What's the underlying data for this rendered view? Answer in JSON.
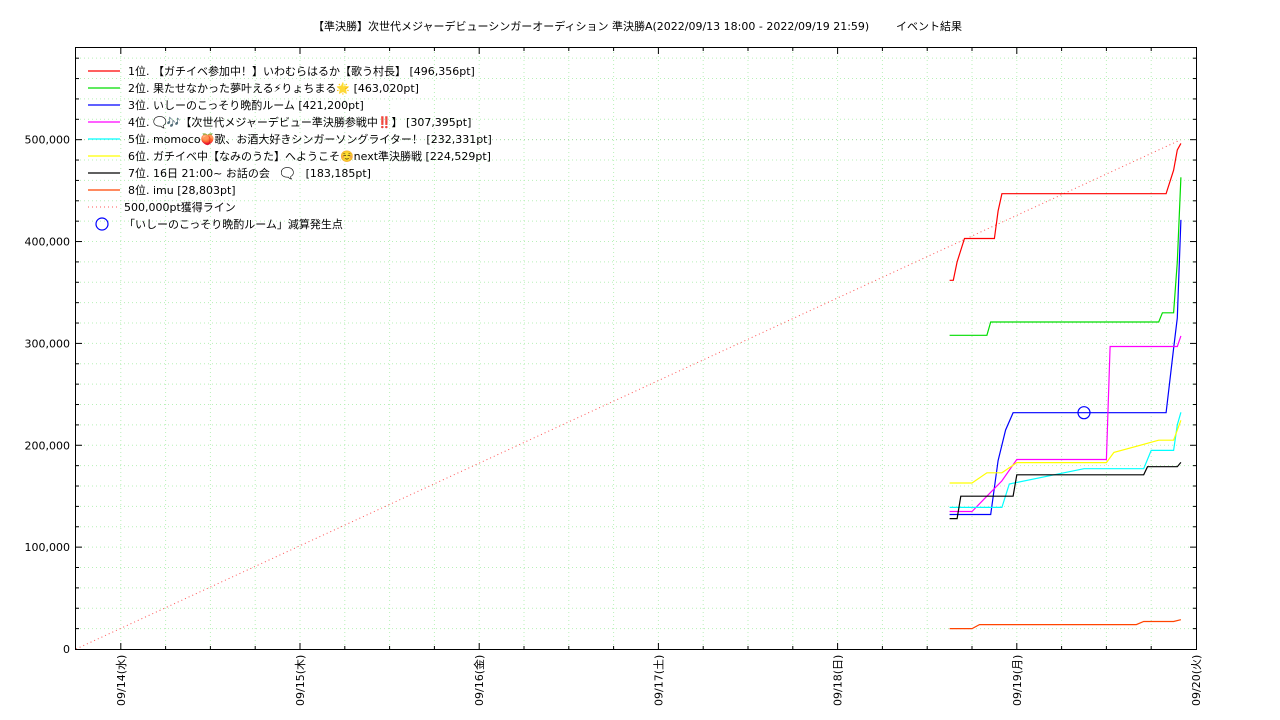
{
  "chart_data": {
    "type": "line",
    "title": "【準決勝】次世代メジャーデビューシンガーオーディション 準決勝A(2022/09/13 18:00 - 2022/09/19 21:59)",
    "subtitle": "イベント結果",
    "xlabel": "",
    "ylabel": "",
    "xlim": [
      "2022-09-13 18:00",
      "2022-09-20 00:00"
    ],
    "ylim": [
      0,
      590000
    ],
    "grid": true,
    "legend_position": "top-left",
    "x_tick_labels": [
      "09/14(水)",
      "09/15(木)",
      "09/16(金)",
      "09/17(土)",
      "09/18(日)",
      "09/19(月)",
      "09/20(火)"
    ],
    "x_tick_values": [
      "2022-09-14 00:00",
      "2022-09-15 00:00",
      "2022-09-16 00:00",
      "2022-09-17 00:00",
      "2022-09-18 00:00",
      "2022-09-19 00:00",
      "2022-09-20 00:00"
    ],
    "y_tick_labels": [
      "0",
      "100,000",
      "200,000",
      "300,000",
      "400,000",
      "500,000"
    ],
    "y_tick_values": [
      0,
      100000,
      200000,
      300000,
      400000,
      500000
    ],
    "series": [
      {
        "name": "1位. 【ガチイベ参加中！】いわむらはるか【歌う村長】 [496,356pt]",
        "color": "#ff0000",
        "x": [
          "2022-09-18 15:00",
          "2022-09-18 15:30",
          "2022-09-18 16:00",
          "2022-09-18 17:00",
          "2022-09-18 21:00",
          "2022-09-18 21:30",
          "2022-09-18 22:00",
          "2022-09-19 15:00",
          "2022-09-19 20:00",
          "2022-09-19 21:00",
          "2022-09-19 21:30",
          "2022-09-19 21:59"
        ],
        "y": [
          362000,
          362000,
          380000,
          403000,
          403000,
          430000,
          447000,
          447000,
          447000,
          470000,
          490000,
          496356
        ]
      },
      {
        "name": "2位. 果たせなかった夢叶える⚡りょちまる🌟 [463,020pt]",
        "color": "#00dd00",
        "x": [
          "2022-09-18 15:00",
          "2022-09-18 20:00",
          "2022-09-18 20:30",
          "2022-09-19 12:00",
          "2022-09-19 19:00",
          "2022-09-19 19:30",
          "2022-09-19 21:00",
          "2022-09-19 21:30",
          "2022-09-19 21:59"
        ],
        "y": [
          308000,
          308000,
          321000,
          321000,
          321000,
          330000,
          330000,
          380000,
          463020
        ]
      },
      {
        "name": "3位. いしーのこっそり晩酌ルーム [421,200pt]",
        "color": "#0000ff",
        "x": [
          "2022-09-18 15:00",
          "2022-09-18 20:30",
          "2022-09-18 21:30",
          "2022-09-18 22:30",
          "2022-09-18 23:30",
          "2022-09-19 15:00",
          "2022-09-19 20:00",
          "2022-09-19 21:00",
          "2022-09-19 21:30",
          "2022-09-19 21:59"
        ],
        "y": [
          132000,
          132000,
          185000,
          215000,
          232000,
          232000,
          232000,
          295000,
          325000,
          421200
        ]
      },
      {
        "name": "4位. 🗨️🎶【次世代メジャーデビュー準決勝参戦中‼️】 [307,395pt]",
        "color": "#ff00ff",
        "x": [
          "2022-09-18 15:00",
          "2022-09-18 18:00",
          "2022-09-18 20:00",
          "2022-09-18 22:00",
          "2022-09-19 00:00",
          "2022-09-19 10:00",
          "2022-09-19 12:00",
          "2022-09-19 12:30",
          "2022-09-19 21:30",
          "2022-09-19 21:59"
        ],
        "y": [
          135000,
          135000,
          150000,
          165000,
          186000,
          186000,
          186000,
          297000,
          297000,
          307395
        ]
      },
      {
        "name": "5位. momoco🍑歌、お酒大好きシンガーソングライター！ [232,331pt]",
        "color": "#00ffff",
        "x": [
          "2022-09-18 15:00",
          "2022-09-18 22:00",
          "2022-09-18 23:00",
          "2022-09-19 09:00",
          "2022-09-19 17:00",
          "2022-09-19 18:00",
          "2022-09-19 21:00",
          "2022-09-19 21:30",
          "2022-09-19 21:59"
        ],
        "y": [
          139000,
          139000,
          162000,
          177000,
          177000,
          195000,
          195000,
          220000,
          232331
        ]
      },
      {
        "name": "6位. ガチイベ中【なみのうた】へようこそ☺️next準決勝戦 [224,529pt]",
        "color": "#ffff00",
        "x": [
          "2022-09-18 15:00",
          "2022-09-18 18:00",
          "2022-09-18 20:00",
          "2022-09-18 22:00",
          "2022-09-19 00:00",
          "2022-09-19 12:00",
          "2022-09-19 13:00",
          "2022-09-19 19:00",
          "2022-09-19 21:00",
          "2022-09-19 21:59"
        ],
        "y": [
          163000,
          163000,
          173000,
          173000,
          183000,
          183000,
          193000,
          205000,
          205000,
          224529
        ]
      },
      {
        "name": "7位. 16日 21:00~ お話の会　🗨️　[183,185pt]",
        "color": "#000000",
        "x": [
          "2022-09-18 15:00",
          "2022-09-18 16:00",
          "2022-09-18 16:30",
          "2022-09-18 23:30",
          "2022-09-19 00:00",
          "2022-09-19 17:00",
          "2022-09-19 17:30",
          "2022-09-19 21:30",
          "2022-09-19 21:59"
        ],
        "y": [
          128000,
          128000,
          150000,
          150000,
          171000,
          171000,
          179000,
          179000,
          183185
        ]
      },
      {
        "name": "8位. imu [28,803pt]",
        "color": "#ff4400",
        "x": [
          "2022-09-18 15:00",
          "2022-09-18 18:00",
          "2022-09-18 19:00",
          "2022-09-19 16:00",
          "2022-09-19 17:00",
          "2022-09-19 21:00",
          "2022-09-19 21:59"
        ],
        "y": [
          20000,
          20000,
          24000,
          24000,
          27000,
          27000,
          28803
        ]
      }
    ],
    "reference_line": {
      "name": "500,000pt獲得ライン",
      "color": "#ff5555",
      "from": [
        "2022-09-13 18:00",
        0
      ],
      "to": [
        "2022-09-19 21:59",
        500000
      ]
    },
    "marker": {
      "name": "「いしーのこっそり晩酌ルーム」減算発生点",
      "color": "#0000ff",
      "x": "2022-09-19 09:00",
      "y": 232000
    }
  }
}
